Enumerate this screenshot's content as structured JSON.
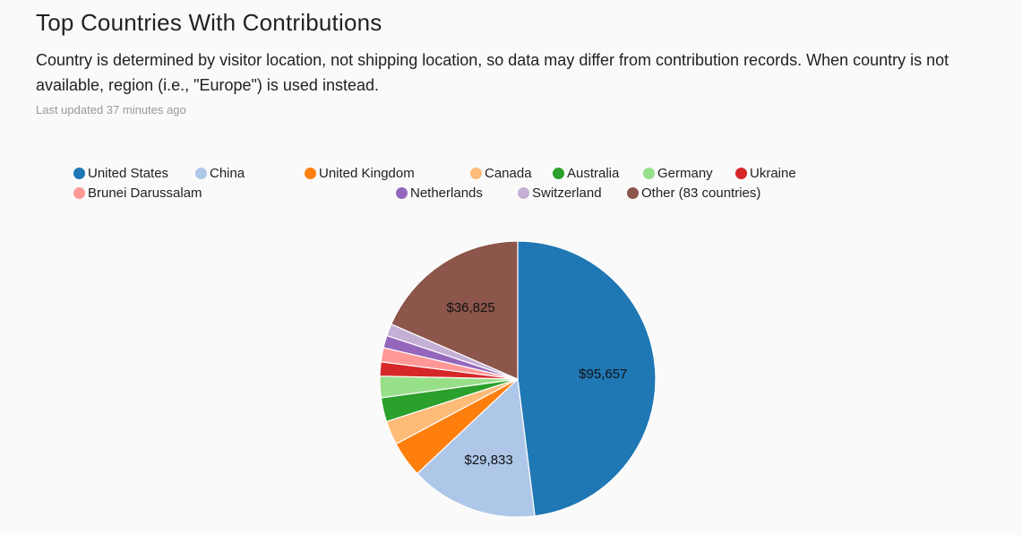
{
  "header": {
    "title": "Top Countries With Contributions",
    "subtitle": "Country is determined by visitor location, not shipping location, so data may differ from contribution records. When country is not available, region (i.e., \"Europe\") is used instead.",
    "updated": "Last updated 37 minutes ago"
  },
  "chart_data": {
    "type": "pie",
    "title": "",
    "legend_position": "top",
    "slices": [
      {
        "name": "United States",
        "value": 95657,
        "color": "#1f77b4",
        "label": "$95,657"
      },
      {
        "name": "China",
        "value": 29833,
        "color": "#aec7e8",
        "label": "$29,833"
      },
      {
        "name": "United Kingdom",
        "value": 8400,
        "color": "#ff7f0e",
        "label": ""
      },
      {
        "name": "Canada",
        "value": 5600,
        "color": "#ffbb78",
        "label": ""
      },
      {
        "name": "Australia",
        "value": 5600,
        "color": "#2ca02c",
        "label": ""
      },
      {
        "name": "Germany",
        "value": 5000,
        "color": "#98df8a",
        "label": ""
      },
      {
        "name": "Ukraine",
        "value": 3300,
        "color": "#d62728",
        "label": ""
      },
      {
        "name": "Brunei Darussalam",
        "value": 3300,
        "color": "#ff9896",
        "label": ""
      },
      {
        "name": "Netherlands",
        "value": 2900,
        "color": "#9467bd",
        "label": ""
      },
      {
        "name": "Switzerland",
        "value": 2800,
        "color": "#c5b0d5",
        "label": ""
      },
      {
        "name": "Other (83 countries)",
        "value": 36825,
        "color": "#8c564b",
        "label": "$36,825"
      }
    ]
  }
}
